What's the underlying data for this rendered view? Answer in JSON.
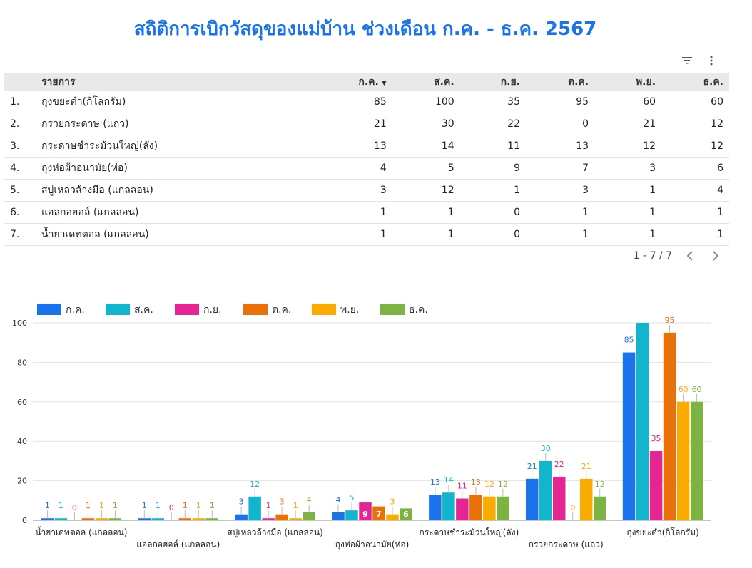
{
  "title": "สถิติการเบิกวัสดุของแม่บ้าน ช่วงเดือน ก.ค. - ธ.ค. 2567",
  "toolbar": {
    "filter_icon": "filter-icon",
    "more_icon": "more-vert-icon"
  },
  "table": {
    "columns": [
      "รายการ",
      "ก.ค.",
      "ส.ค.",
      "ก.ย.",
      "ต.ค.",
      "พ.ย.",
      "ธ.ค."
    ],
    "sort_indicator": "▼",
    "rows": [
      {
        "index": "1.",
        "item": "ถุงขยะดำ(กิโลกรัม)",
        "values": [
          "85",
          "100",
          "35",
          "95",
          "60",
          "60"
        ]
      },
      {
        "index": "2.",
        "item": "กรวยกระดาษ (แถว)",
        "values": [
          "21",
          "30",
          "22",
          "0",
          "21",
          "12"
        ]
      },
      {
        "index": "3.",
        "item": "กระดาษชำระม้วนใหญ่(ลัง)",
        "values": [
          "13",
          "14",
          "11",
          "13",
          "12",
          "12"
        ]
      },
      {
        "index": "4.",
        "item": "ถุงห่อผ้าอนามัย(ห่อ)",
        "values": [
          "4",
          "5",
          "9",
          "7",
          "3",
          "6"
        ]
      },
      {
        "index": "5.",
        "item": "สบู่เหลวล้างมือ (แกลลอน)",
        "values": [
          "3",
          "12",
          "1",
          "3",
          "1",
          "4"
        ]
      },
      {
        "index": "6.",
        "item": "แอลกอฮอล์ (แกลลอน)",
        "values": [
          "1",
          "1",
          "0",
          "1",
          "1",
          "1"
        ]
      },
      {
        "index": "7.",
        "item": "น้ำยาเดทตอล (แกลลอน)",
        "values": [
          "1",
          "1",
          "0",
          "1",
          "1",
          "1"
        ]
      }
    ],
    "pagination": "1 - 7 / 7"
  },
  "chart_data": {
    "type": "bar",
    "categories": [
      "น้ำยาเดทตอล (แกลลอน)",
      "แอลกอฮอล์ (แกลลอน)",
      "สบู่เหลวล้างมือ (แกลลอน)",
      "ถุงห่อผ้าอนามัย(ห่อ)",
      "กระดาษชำระม้วนใหญ่(ลัง)",
      "กรวยกระดาษ (แถว)",
      "ถุงขยะดำ(กิโลกรัม)"
    ],
    "series": [
      {
        "name": "ก.ค.",
        "color": "#1a73e8",
        "values": [
          1,
          1,
          3,
          4,
          13,
          21,
          85
        ]
      },
      {
        "name": "ส.ค.",
        "color": "#12b5cb",
        "values": [
          1,
          1,
          12,
          5,
          14,
          30,
          100
        ]
      },
      {
        "name": "ก.ย.",
        "color": "#e52592",
        "values": [
          0,
          0,
          1,
          9,
          11,
          22,
          35
        ]
      },
      {
        "name": "ต.ค.",
        "color": "#e8710a",
        "values": [
          1,
          1,
          3,
          7,
          13,
          0,
          95
        ]
      },
      {
        "name": "พ.ย.",
        "color": "#f9ab00",
        "values": [
          1,
          1,
          1,
          3,
          12,
          21,
          60
        ]
      },
      {
        "name": "ธ.ค.",
        "color": "#7cb342",
        "values": [
          1,
          1,
          4,
          6,
          12,
          12,
          60
        ]
      }
    ],
    "ylim": [
      0,
      100
    ],
    "yticks": [
      0,
      20,
      40,
      60,
      80,
      100
    ],
    "legend": "top-left",
    "grid": true
  }
}
